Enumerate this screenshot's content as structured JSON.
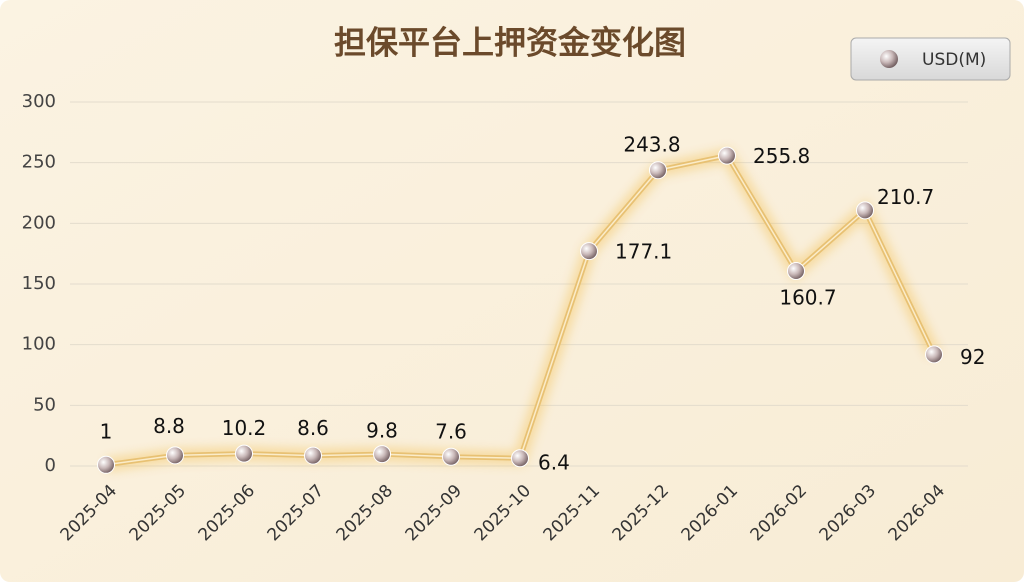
{
  "chart_data": {
    "type": "line",
    "title": "担保平台上押资金变化图",
    "categories": [
      "2025-04",
      "2025-05",
      "2025-06",
      "2025-07",
      "2025-08",
      "2025-09",
      "2025-10",
      "2025-11",
      "2025-12",
      "2026-01",
      "2026-02",
      "2026-03",
      "2026-04"
    ],
    "series": [
      {
        "name": "USD(M)",
        "color": "#e8c173",
        "values": [
          1,
          8.8,
          10.2,
          8.6,
          9.8,
          7.6,
          6.4,
          177.1,
          243.8,
          255.8,
          160.7,
          210.7,
          92
        ]
      }
    ],
    "ylim": [
      0,
      300
    ],
    "yticks": [
      0,
      50,
      100,
      150,
      200,
      250,
      300
    ],
    "grid": true,
    "legend": "top-right"
  }
}
